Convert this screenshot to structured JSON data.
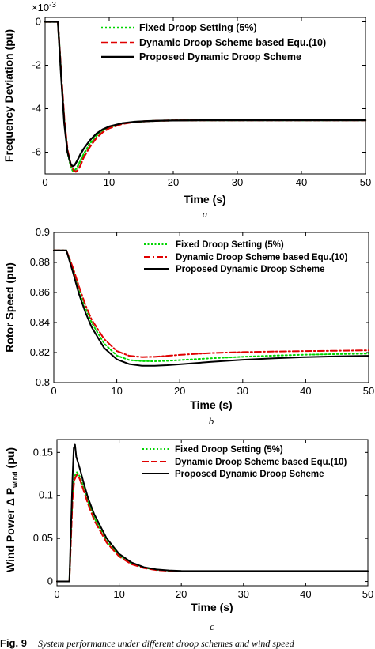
{
  "chart_data": [
    {
      "id": "a",
      "type": "line",
      "subplot_label": "a",
      "xlabel": "Time (s)",
      "ylabel": "Frequency Deviation (pu)",
      "exponent_label": "×10",
      "exponent_power": "-3",
      "xlim": [
        0,
        50
      ],
      "ylim": [
        -7,
        0.2
      ],
      "xticks": [
        0,
        10,
        20,
        30,
        40,
        50
      ],
      "yticks": [
        0,
        -2,
        -4,
        -6
      ],
      "xtick_labels": [
        "0",
        "10",
        "20",
        "30",
        "40",
        "50"
      ],
      "ytick_labels": [
        "0",
        "-2",
        "-4",
        "-6"
      ],
      "legend_position": "top-right",
      "series": [
        {
          "name": "Fixed Droop Setting (5%)",
          "color": "#00d400",
          "dash": "dotted",
          "x": [
            0,
            2,
            2.5,
            3,
            3.5,
            4,
            4.3,
            4.6,
            5,
            5.5,
            6,
            7,
            8,
            9,
            10,
            12,
            14,
            16,
            18,
            20,
            25,
            30,
            40,
            50
          ],
          "y": [
            0,
            0,
            -2.4,
            -4.6,
            -6.0,
            -6.65,
            -6.85,
            -6.85,
            -6.7,
            -6.4,
            -6.1,
            -5.6,
            -5.25,
            -5.0,
            -4.85,
            -4.68,
            -4.61,
            -4.57,
            -4.55,
            -4.54,
            -4.53,
            -4.53,
            -4.53,
            -4.53
          ]
        },
        {
          "name": "Dynamic Droop Scheme based Equ.(10)",
          "color": "#e00000",
          "dash": "dashed",
          "x": [
            0,
            2,
            2.5,
            3,
            3.5,
            4,
            4.5,
            4.8,
            5.2,
            5.6,
            6,
            7,
            8,
            9,
            10,
            12,
            14,
            16,
            18,
            20,
            25,
            30,
            40,
            50
          ],
          "y": [
            0,
            0,
            -2.3,
            -4.5,
            -5.9,
            -6.55,
            -6.85,
            -6.9,
            -6.8,
            -6.55,
            -6.25,
            -5.75,
            -5.35,
            -5.08,
            -4.9,
            -4.7,
            -4.61,
            -4.57,
            -4.55,
            -4.54,
            -4.53,
            -4.53,
            -4.53,
            -4.53
          ]
        },
        {
          "name": "Proposed Dynamic Droop Scheme",
          "color": "#000000",
          "dash": "solid",
          "x": [
            0,
            2,
            2.5,
            3,
            3.5,
            4,
            4.3,
            4.6,
            5,
            5.5,
            6,
            7,
            8,
            9,
            10,
            12,
            14,
            16,
            18,
            20,
            25,
            30,
            40,
            50
          ],
          "y": [
            0,
            0,
            -2.5,
            -4.7,
            -6.0,
            -6.55,
            -6.65,
            -6.6,
            -6.4,
            -6.1,
            -5.85,
            -5.45,
            -5.15,
            -4.95,
            -4.82,
            -4.67,
            -4.6,
            -4.57,
            -4.55,
            -4.54,
            -4.53,
            -4.53,
            -4.53,
            -4.53
          ]
        }
      ]
    },
    {
      "id": "b",
      "type": "line",
      "subplot_label": "b",
      "xlabel": "Time (s)",
      "ylabel": "Rotor Speed (pu)",
      "xlim": [
        0,
        50
      ],
      "ylim": [
        0.8,
        0.9
      ],
      "xticks": [
        0,
        10,
        20,
        30,
        40,
        50
      ],
      "yticks": [
        0.8,
        0.82,
        0.84,
        0.86,
        0.88,
        0.9
      ],
      "xtick_labels": [
        "0",
        "10",
        "20",
        "30",
        "40",
        "50"
      ],
      "ytick_labels": [
        "0.8",
        "0.82",
        "0.84",
        "0.86",
        "0.88",
        "0.9"
      ],
      "legend_position": "top-right",
      "series": [
        {
          "name": "Fixed Droop Setting (5%)",
          "color": "#00d400",
          "dash": "dotted",
          "x": [
            0,
            2,
            3,
            4,
            5,
            6,
            8,
            10,
            12,
            14,
            16,
            18,
            20,
            25,
            30,
            35,
            40,
            45,
            50
          ],
          "y": [
            0.888,
            0.888,
            0.876,
            0.862,
            0.85,
            0.84,
            0.826,
            0.818,
            0.815,
            0.8143,
            0.8142,
            0.8145,
            0.815,
            0.8162,
            0.8172,
            0.818,
            0.8186,
            0.819,
            0.8193
          ]
        },
        {
          "name": "Dynamic Droop Scheme based Equ.(10)",
          "color": "#e00000",
          "dash": "dashdot",
          "x": [
            0,
            2,
            3,
            4,
            5,
            6,
            8,
            10,
            12,
            14,
            16,
            18,
            20,
            25,
            30,
            35,
            40,
            45,
            50
          ],
          "y": [
            0.888,
            0.888,
            0.877,
            0.864,
            0.852,
            0.842,
            0.829,
            0.821,
            0.8178,
            0.817,
            0.8172,
            0.8178,
            0.8185,
            0.8197,
            0.8203,
            0.8207,
            0.821,
            0.8212,
            0.8215
          ]
        },
        {
          "name": "Proposed Dynamic Droop Scheme",
          "color": "#000000",
          "dash": "solid",
          "x": [
            0,
            2,
            3,
            4,
            5,
            6,
            8,
            10,
            12,
            14,
            16,
            18,
            20,
            25,
            30,
            35,
            40,
            45,
            50
          ],
          "y": [
            0.888,
            0.888,
            0.874,
            0.859,
            0.847,
            0.837,
            0.823,
            0.8155,
            0.8123,
            0.8112,
            0.8112,
            0.8116,
            0.8122,
            0.8138,
            0.8152,
            0.8162,
            0.817,
            0.8175,
            0.8178
          ]
        }
      ]
    },
    {
      "id": "c",
      "type": "line",
      "subplot_label": "c",
      "xlabel": "Time (s)",
      "ylabel": "Wind Power Δ P",
      "ylabel_sub": "wind",
      "ylabel_unit": "(pu)",
      "xlim": [
        0,
        50
      ],
      "ylim": [
        -0.005,
        0.165
      ],
      "xticks": [
        0,
        10,
        20,
        30,
        40,
        50
      ],
      "yticks": [
        0,
        0.05,
        0.1,
        0.15
      ],
      "xtick_labels": [
        "0",
        "10",
        "20",
        "30",
        "40",
        "50"
      ],
      "ytick_labels": [
        "0",
        "0.05",
        "0.1",
        "0.15"
      ],
      "legend_position": "top-right",
      "series": [
        {
          "name": "Fixed Droop Setting (5%)",
          "color": "#00d400",
          "dash": "dotted",
          "x": [
            0,
            2,
            2.2,
            2.5,
            2.8,
            3.2,
            3.6,
            4,
            5,
            6,
            8,
            10,
            12,
            14,
            16,
            18,
            20,
            25,
            30,
            40,
            50
          ],
          "y": [
            0,
            0,
            0.04,
            0.1,
            0.122,
            0.127,
            0.123,
            0.115,
            0.093,
            0.074,
            0.047,
            0.03,
            0.021,
            0.016,
            0.0135,
            0.0125,
            0.012,
            0.0118,
            0.0118,
            0.0118,
            0.0118
          ]
        },
        {
          "name": "Dynamic Droop Scheme based Equ.(10)",
          "color": "#e00000",
          "dash": "dashed",
          "x": [
            0,
            2,
            2.2,
            2.5,
            2.8,
            3.2,
            3.6,
            4,
            5,
            6,
            8,
            10,
            12,
            14,
            16,
            18,
            20,
            25,
            30,
            40,
            50
          ],
          "y": [
            0,
            0,
            0.038,
            0.095,
            0.118,
            0.124,
            0.12,
            0.112,
            0.09,
            0.071,
            0.045,
            0.029,
            0.02,
            0.0155,
            0.0132,
            0.0123,
            0.0119,
            0.0118,
            0.0118,
            0.0118,
            0.0118
          ]
        },
        {
          "name": "Proposed Dynamic Droop Scheme",
          "color": "#000000",
          "dash": "solid",
          "x": [
            0,
            2,
            2.2,
            2.5,
            2.7,
            2.9,
            3.1,
            3.4,
            3.8,
            4.2,
            5,
            6,
            8,
            10,
            12,
            14,
            16,
            18,
            20,
            25,
            30,
            40,
            50
          ],
          "y": [
            0,
            0,
            0.05,
            0.12,
            0.155,
            0.159,
            0.145,
            0.138,
            0.128,
            0.117,
            0.097,
            0.078,
            0.05,
            0.032,
            0.022,
            0.0165,
            0.014,
            0.0128,
            0.0122,
            0.0121,
            0.0121,
            0.0121,
            0.0121
          ]
        }
      ]
    }
  ],
  "caption": {
    "label": "Fig. 9",
    "text": "System performance under different droop schemes and wind speed"
  }
}
